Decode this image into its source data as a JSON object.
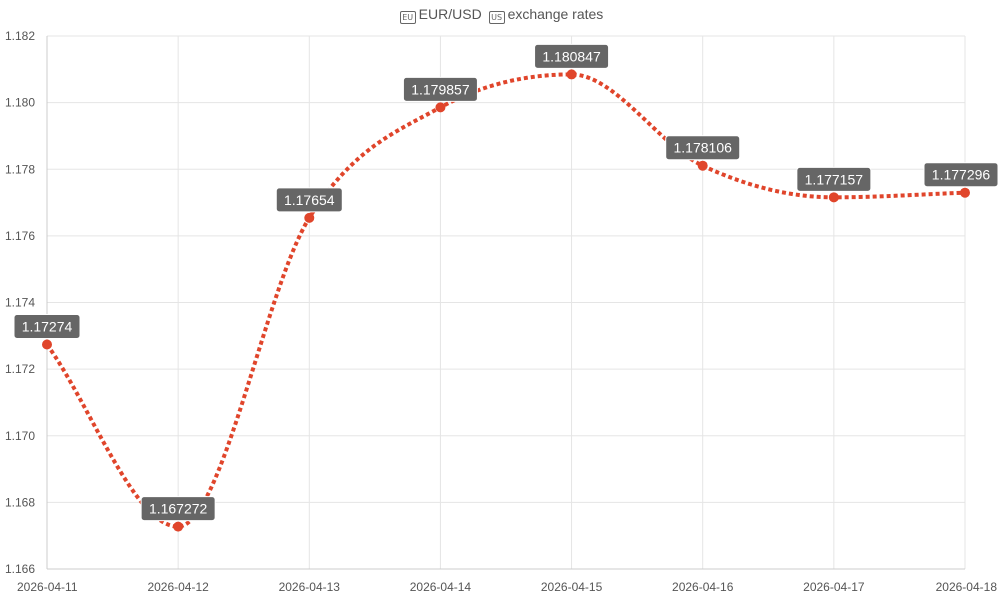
{
  "chart_data": {
    "type": "line",
    "title_parts": {
      "flag_left_icon": "eu-flag-icon",
      "pair": "EUR/USD",
      "flag_right_icon": "us-flag-icon",
      "rest": "exchange rates"
    },
    "x": [
      "2026-04-11",
      "2026-04-12",
      "2026-04-13",
      "2026-04-14",
      "2026-04-15",
      "2026-04-16",
      "2026-04-17",
      "2026-04-18"
    ],
    "series": [
      {
        "values": [
          1.17274,
          1.167272,
          1.17654,
          1.179857,
          1.180847,
          1.178106,
          1.177157,
          1.177296
        ],
        "labels": [
          "1.17274",
          "1.167272",
          "1.17654",
          "1.179857",
          "1.180847",
          "1.178106",
          "1.177157",
          "1.177296"
        ],
        "color": "#e0452b",
        "line_style": "dotted",
        "smooth": true
      }
    ],
    "yticks": [
      "1.182",
      "1.180",
      "1.178",
      "1.176",
      "1.174",
      "1.172",
      "1.170",
      "1.168",
      "1.166"
    ],
    "ylim": [
      1.166,
      1.182
    ],
    "grid": true,
    "label_bg_color": "#666666",
    "label_text_color": "#ffffff",
    "grid_color": "#e5e5e5",
    "axis_text_color": "#555555"
  }
}
